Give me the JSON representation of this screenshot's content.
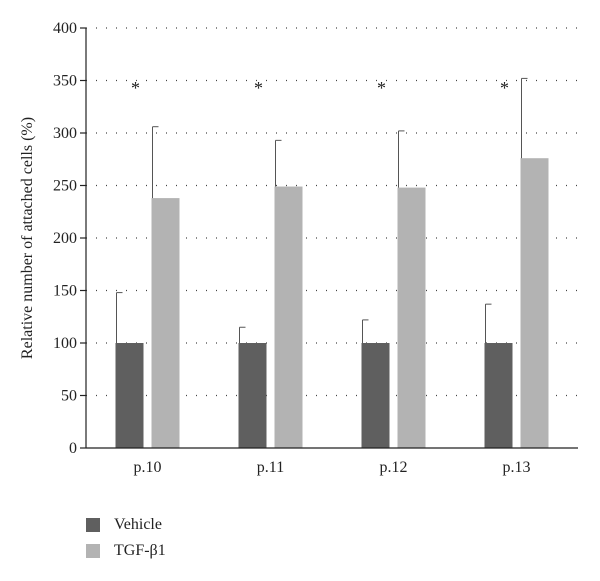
{
  "chart_data": {
    "type": "bar",
    "categories": [
      "p.10",
      "p.11",
      "p.12",
      "p.13"
    ],
    "series": [
      {
        "name": "Vehicle",
        "values": [
          100,
          100,
          100,
          100
        ],
        "errors": [
          48,
          15,
          22,
          37
        ],
        "color": "#5f5f5f"
      },
      {
        "name": "TGF-β1",
        "values": [
          238,
          249,
          248,
          276
        ],
        "errors": [
          68,
          44,
          54,
          76
        ],
        "color": "#b3b3b3"
      }
    ],
    "annotations": [
      "*",
      "*",
      "*",
      "*"
    ],
    "annotation_y": 345,
    "title": "",
    "xlabel": "",
    "ylabel": "Relative number of attached cells (%)",
    "ylim": [
      0,
      400
    ],
    "yticks": [
      0,
      50,
      100,
      150,
      200,
      250,
      300,
      350,
      400
    ],
    "grid": "horizontal dotted",
    "legend_position": "bottom-left"
  }
}
